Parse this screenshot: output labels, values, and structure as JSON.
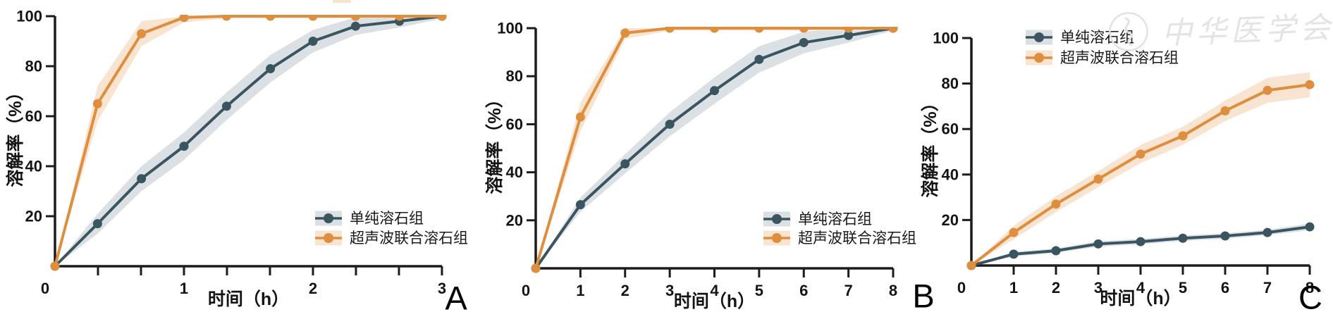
{
  "chart_data": [
    {
      "panel_label": "A",
      "type": "line",
      "title": "",
      "xlabel": "时间（h）",
      "ylabel": "溶解率（%）",
      "xlim": [
        0,
        3
      ],
      "ylim": [
        0,
        100
      ],
      "x_ticks": [
        0,
        1,
        2,
        3
      ],
      "x_minor_step": 0.3333,
      "y_ticks": [
        20,
        40,
        60,
        80,
        100
      ],
      "grid": false,
      "legend_position": "lower right",
      "x": [
        0,
        0.33,
        0.67,
        1,
        1.33,
        1.67,
        2,
        2.33,
        2.67,
        3
      ],
      "series": [
        {
          "name": "单纯溶石组",
          "color": "#3a5560",
          "band_color": "#dbe0e4",
          "values": [
            0,
            17,
            35,
            48,
            64,
            79,
            90,
            96,
            98,
            100
          ],
          "band_halfwidth": [
            0,
            4,
            5,
            5.5,
            5.5,
            5.5,
            4.5,
            3.5,
            2.5,
            1
          ]
        },
        {
          "name": "超声波联合溶石组",
          "color": "#dd8e3e",
          "band_color": "#f8e4d0",
          "values": [
            0,
            65,
            93,
            99.5,
            100,
            100,
            100,
            100,
            100,
            100
          ],
          "band_halfwidth": [
            0,
            7,
            5,
            2,
            0.8,
            0.8,
            0.8,
            0.8,
            0.8,
            0.8
          ]
        }
      ]
    },
    {
      "panel_label": "B",
      "type": "line",
      "title": "",
      "xlabel": "时间（h）",
      "ylabel": "溶解率（%）",
      "xlim": [
        0,
        8
      ],
      "ylim": [
        0,
        100
      ],
      "x_ticks": [
        0,
        1,
        2,
        3,
        4,
        5,
        6,
        7,
        8
      ],
      "x_minor_step": 1,
      "y_ticks": [
        20,
        40,
        60,
        80,
        100
      ],
      "grid": false,
      "legend_position": "lower right",
      "x": [
        0,
        1,
        2,
        3,
        4,
        5,
        6,
        7,
        8
      ],
      "series": [
        {
          "name": "单纯溶石组",
          "color": "#3a5560",
          "band_color": "#dbe0e4",
          "values": [
            0,
            26.5,
            43.5,
            60,
            74,
            87,
            94,
            97,
            100
          ],
          "band_halfwidth": [
            0,
            3,
            4,
            5,
            5.5,
            5.5,
            4.5,
            3,
            1
          ]
        },
        {
          "name": "超声波联合溶石组",
          "color": "#dd8e3e",
          "band_color": "#f8e4d0",
          "values": [
            0,
            63,
            98,
            100,
            100,
            100,
            100,
            100,
            100
          ],
          "band_halfwidth": [
            0,
            6,
            2.5,
            1,
            1,
            1,
            1,
            1,
            1
          ]
        }
      ]
    },
    {
      "panel_label": "C",
      "type": "line",
      "title": "",
      "xlabel": "时间（h）",
      "ylabel": "溶解率（%）",
      "xlim": [
        0,
        8
      ],
      "ylim": [
        0,
        100
      ],
      "x_ticks": [
        0,
        1,
        2,
        3,
        4,
        5,
        6,
        7,
        8
      ],
      "x_minor_step": 1,
      "y_ticks": [
        20,
        40,
        60,
        80,
        100
      ],
      "grid": false,
      "legend_position": "upper left",
      "x": [
        0,
        1,
        2,
        3,
        4,
        5,
        6,
        7,
        8
      ],
      "series": [
        {
          "name": "单纯溶石组",
          "color": "#3a5560",
          "band_color": "#dbe0e4",
          "values": [
            0,
            5,
            6.5,
            9.5,
            10.5,
            12,
            13,
            14.5,
            17
          ],
          "band_halfwidth": [
            0,
            1,
            1,
            1.2,
            1.2,
            1.2,
            1.2,
            1.2,
            1.5
          ]
        },
        {
          "name": "超声波联合溶石组",
          "color": "#dd8e3e",
          "band_color": "#f8e4d0",
          "values": [
            0,
            14.5,
            27,
            38,
            49,
            57,
            68,
            77,
            79.5
          ],
          "band_halfwidth": [
            0,
            3,
            3.5,
            3.5,
            4,
            4,
            4.5,
            5.5,
            5.5
          ]
        }
      ]
    }
  ],
  "watermark": {
    "text": "中华医学会"
  }
}
